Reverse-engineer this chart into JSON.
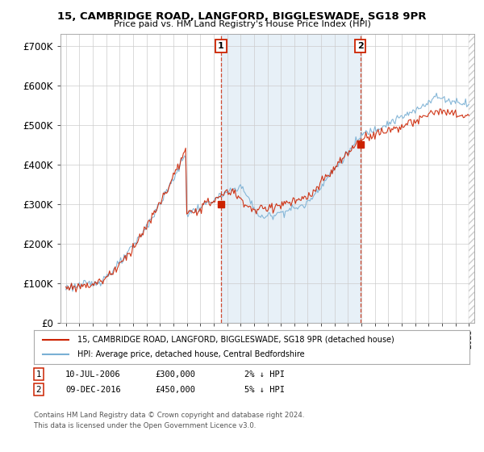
{
  "title_line1": "15, CAMBRIDGE ROAD, LANGFORD, BIGGLESWADE, SG18 9PR",
  "title_line2": "Price paid vs. HM Land Registry's House Price Index (HPI)",
  "yticks": [
    0,
    100000,
    200000,
    300000,
    400000,
    500000,
    600000,
    700000
  ],
  "ytick_labels": [
    "£0",
    "£100K",
    "£200K",
    "£300K",
    "£400K",
    "£500K",
    "£600K",
    "£700K"
  ],
  "xlim_start": 1994.6,
  "xlim_end": 2025.4,
  "ylim": [
    0,
    730000
  ],
  "hpi_color": "#7ab0d4",
  "price_color": "#cc2200",
  "shade_color": "#ddeeff",
  "sale1_x": 2006.54,
  "sale1_y": 300000,
  "sale2_x": 2016.92,
  "sale2_y": 450000,
  "legend_line1": "15, CAMBRIDGE ROAD, LANGFORD, BIGGLESWADE, SG18 9PR (detached house)",
  "legend_line2": "HPI: Average price, detached house, Central Bedfordshire",
  "annot1_label": "1",
  "annot2_label": "2",
  "footer_line1": "Contains HM Land Registry data © Crown copyright and database right 2024.",
  "footer_line2": "This data is licensed under the Open Government Licence v3.0.",
  "background_color": "#ffffff",
  "grid_color": "#cccccc"
}
